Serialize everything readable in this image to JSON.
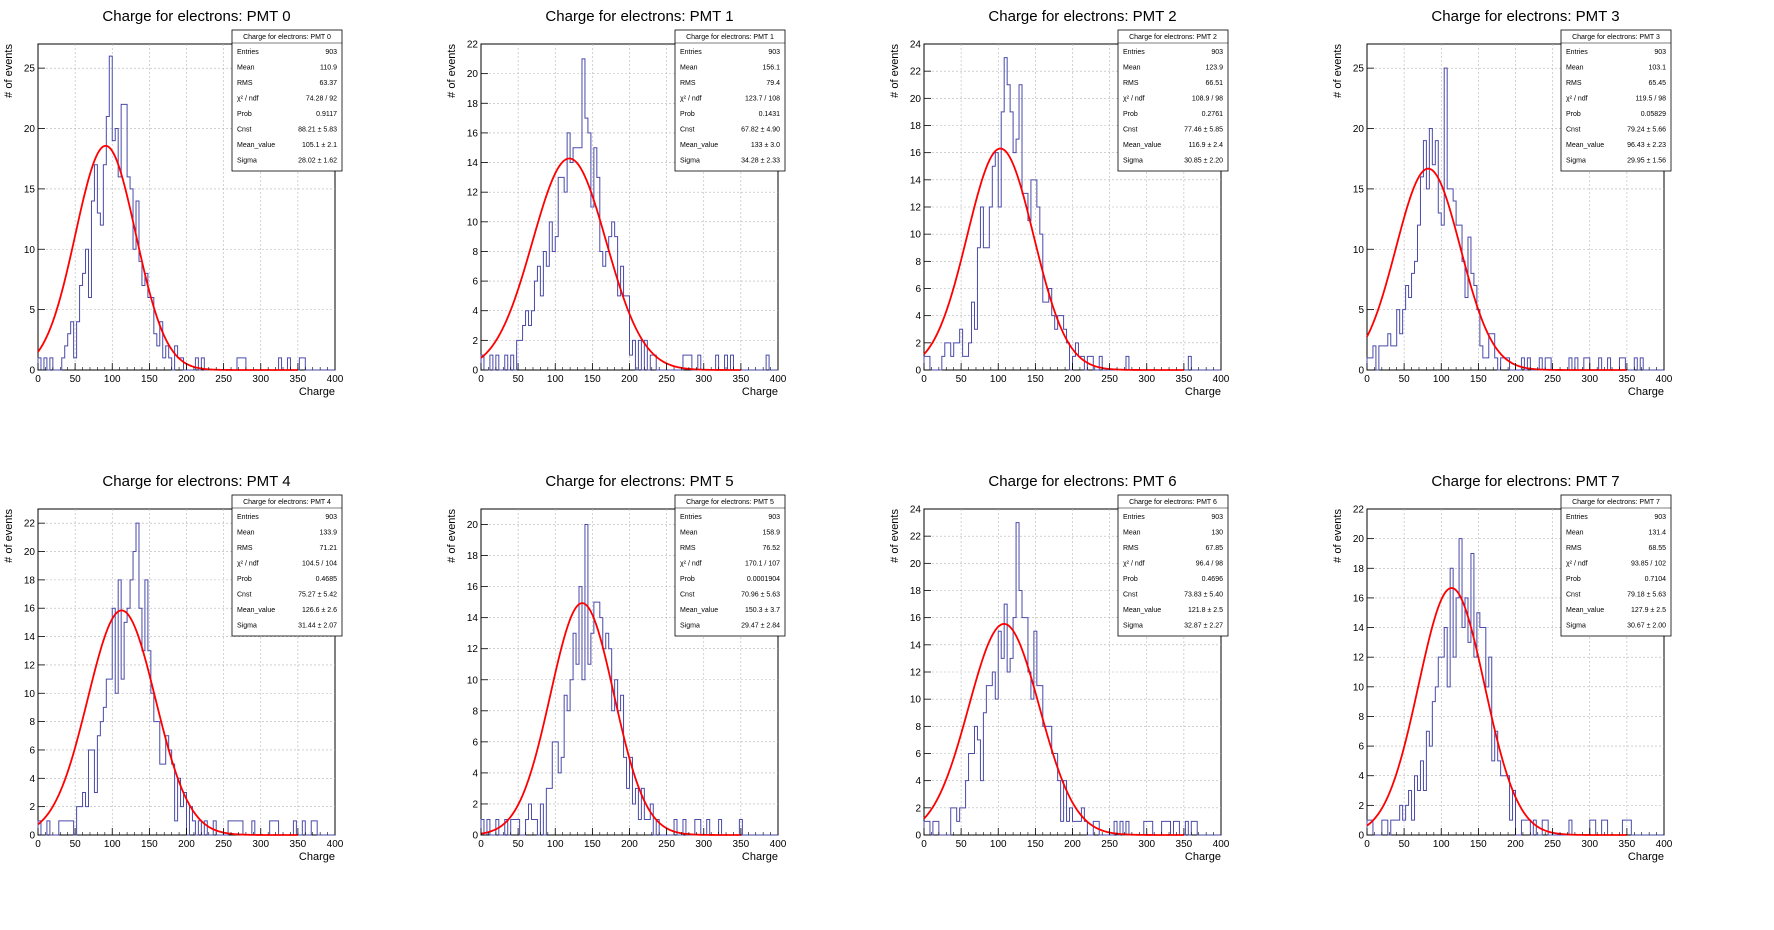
{
  "chart_data": [
    {
      "type": "histogram",
      "title": "Charge for electrons: PMT 0",
      "xlabel": "Charge",
      "ylabel": "# of events",
      "xlim": [
        0,
        400
      ],
      "ylim": [
        0,
        27
      ],
      "yticks": [
        0,
        5,
        10,
        15,
        20,
        25
      ],
      "xticks": [
        0,
        50,
        100,
        150,
        200,
        250,
        300,
        350,
        400
      ],
      "grid": true,
      "bins": 100,
      "peak_bin_value": 26,
      "fit": {
        "Cnst": 88.21,
        "Mean_value": 105.1,
        "Sigma": 28.02,
        "range": [
          0,
          350
        ]
      },
      "stats": {
        "title": "Charge for electrons: PMT 0",
        "rows": [
          {
            "k": "Entries",
            "v": "903"
          },
          {
            "k": "Mean",
            "v": "110.9"
          },
          {
            "k": "RMS",
            "v": "63.37"
          },
          {
            "k": "χ² / ndf",
            "v": "74.28 / 92"
          },
          {
            "k": "Prob",
            "v": "0.9117"
          },
          {
            "k": "Cnst",
            "v": "88.21 ± 5.83"
          },
          {
            "k": "Mean_value",
            "v": "105.1 ± 2.1"
          },
          {
            "k": "Sigma",
            "v": "28.02 ± 1.62"
          }
        ]
      },
      "series": [
        {
          "name": "histogram",
          "color": "#4a4aaa"
        },
        {
          "name": "fit",
          "color": "#ff0000"
        }
      ]
    },
    {
      "type": "histogram",
      "title": "Charge for electrons: PMT 1",
      "xlabel": "Charge",
      "ylabel": "# of events",
      "xlim": [
        0,
        400
      ],
      "ylim": [
        0,
        22
      ],
      "yticks": [
        0,
        2,
        4,
        6,
        8,
        10,
        12,
        14,
        16,
        18,
        20,
        22
      ],
      "xticks": [
        0,
        50,
        100,
        150,
        200,
        250,
        300,
        350,
        400
      ],
      "grid": true,
      "bins": 100,
      "peak_bin_value": 21,
      "fit": {
        "Cnst": 67.82,
        "Mean_value": 133,
        "Sigma": 34.28,
        "range": [
          0,
          350
        ]
      },
      "stats": {
        "title": "Charge for electrons: PMT 1",
        "rows": [
          {
            "k": "Entries",
            "v": "903"
          },
          {
            "k": "Mean",
            "v": "156.1"
          },
          {
            "k": "RMS",
            "v": "79.4"
          },
          {
            "k": "χ² / ndf",
            "v": "123.7 / 108"
          },
          {
            "k": "Prob",
            "v": "0.1431"
          },
          {
            "k": "Cnst",
            "v": "67.82 ± 4.90"
          },
          {
            "k": "Mean_value",
            "v": "133 ± 3.0"
          },
          {
            "k": "Sigma",
            "v": "34.28 ± 2.33"
          }
        ]
      },
      "series": [
        {
          "name": "histogram",
          "color": "#4a4aaa"
        },
        {
          "name": "fit",
          "color": "#ff0000"
        }
      ]
    },
    {
      "type": "histogram",
      "title": "Charge for electrons: PMT 2",
      "xlabel": "Charge",
      "ylabel": "# of events",
      "xlim": [
        0,
        400
      ],
      "ylim": [
        0,
        24
      ],
      "yticks": [
        0,
        2,
        4,
        6,
        8,
        10,
        12,
        14,
        16,
        18,
        20,
        22,
        24
      ],
      "xticks": [
        0,
        50,
        100,
        150,
        200,
        250,
        300,
        350,
        400
      ],
      "grid": true,
      "bins": 100,
      "peak_bin_value": 23,
      "fit": {
        "Cnst": 77.46,
        "Mean_value": 116.9,
        "Sigma": 30.85,
        "range": [
          0,
          350
        ]
      },
      "stats": {
        "title": "Charge for electrons: PMT 2",
        "rows": [
          {
            "k": "Entries",
            "v": "903"
          },
          {
            "k": "Mean",
            "v": "123.9"
          },
          {
            "k": "RMS",
            "v": "66.51"
          },
          {
            "k": "χ² / ndf",
            "v": "108.9 / 98"
          },
          {
            "k": "Prob",
            "v": "0.2761"
          },
          {
            "k": "Cnst",
            "v": "77.46 ± 5.85"
          },
          {
            "k": "Mean_value",
            "v": "116.9 ± 2.4"
          },
          {
            "k": "Sigma",
            "v": "30.85 ± 2.20"
          }
        ]
      },
      "series": [
        {
          "name": "histogram",
          "color": "#4a4aaa"
        },
        {
          "name": "fit",
          "color": "#ff0000"
        }
      ]
    },
    {
      "type": "histogram",
      "title": "Charge for electrons: PMT 3",
      "xlabel": "Charge",
      "ylabel": "# of events",
      "xlim": [
        0,
        400
      ],
      "ylim": [
        0,
        27
      ],
      "yticks": [
        0,
        5,
        10,
        15,
        20,
        25
      ],
      "xticks": [
        0,
        50,
        100,
        150,
        200,
        250,
        300,
        350,
        400
      ],
      "grid": true,
      "bins": 100,
      "peak_bin_value": 25,
      "fit": {
        "Cnst": 79.24,
        "Mean_value": 96.43,
        "Sigma": 29.95,
        "range": [
          0,
          350
        ]
      },
      "stats": {
        "title": "Charge for electrons: PMT 3",
        "rows": [
          {
            "k": "Entries",
            "v": "903"
          },
          {
            "k": "Mean",
            "v": "103.1"
          },
          {
            "k": "RMS",
            "v": "65.45"
          },
          {
            "k": "χ² / ndf",
            "v": "119.5 / 98"
          },
          {
            "k": "Prob",
            "v": "0.05829"
          },
          {
            "k": "Cnst",
            "v": "79.24 ± 5.66"
          },
          {
            "k": "Mean_value",
            "v": "96.43 ± 2.23"
          },
          {
            "k": "Sigma",
            "v": "29.95 ± 1.56"
          }
        ]
      },
      "series": [
        {
          "name": "histogram",
          "color": "#4a4aaa"
        },
        {
          "name": "fit",
          "color": "#ff0000"
        }
      ]
    },
    {
      "type": "histogram",
      "title": "Charge for electrons: PMT 4",
      "xlabel": "Charge",
      "ylabel": "# of events",
      "xlim": [
        0,
        400
      ],
      "ylim": [
        0,
        23
      ],
      "yticks": [
        0,
        2,
        4,
        6,
        8,
        10,
        12,
        14,
        16,
        18,
        20,
        22
      ],
      "xticks": [
        0,
        50,
        100,
        150,
        200,
        250,
        300,
        350,
        400
      ],
      "grid": true,
      "bins": 100,
      "peak_bin_value": 22,
      "fit": {
        "Cnst": 75.27,
        "Mean_value": 126.6,
        "Sigma": 31.44,
        "range": [
          0,
          350
        ]
      },
      "stats": {
        "title": "Charge for electrons: PMT 4",
        "rows": [
          {
            "k": "Entries",
            "v": "903"
          },
          {
            "k": "Mean",
            "v": "133.9"
          },
          {
            "k": "RMS",
            "v": "71.21"
          },
          {
            "k": "χ² / ndf",
            "v": "104.5 / 104"
          },
          {
            "k": "Prob",
            "v": "0.4685"
          },
          {
            "k": "Cnst",
            "v": "75.27 ± 5.42"
          },
          {
            "k": "Mean_value",
            "v": "126.6 ± 2.6"
          },
          {
            "k": "Sigma",
            "v": "31.44 ± 2.07"
          }
        ]
      },
      "series": [
        {
          "name": "histogram",
          "color": "#4a4aaa"
        },
        {
          "name": "fit",
          "color": "#ff0000"
        }
      ]
    },
    {
      "type": "histogram",
      "title": "Charge for electrons: PMT 5",
      "xlabel": "Charge",
      "ylabel": "# of events",
      "xlim": [
        0,
        400
      ],
      "ylim": [
        0,
        21
      ],
      "yticks": [
        0,
        2,
        4,
        6,
        8,
        10,
        12,
        14,
        16,
        18,
        20
      ],
      "xticks": [
        0,
        50,
        100,
        150,
        200,
        250,
        300,
        350,
        400
      ],
      "grid": true,
      "bins": 100,
      "peak_bin_value": 20,
      "fit": {
        "Cnst": 70.96,
        "Mean_value": 150.3,
        "Sigma": 29.47,
        "range": [
          0,
          350
        ]
      },
      "stats": {
        "title": "Charge for electrons: PMT 5",
        "rows": [
          {
            "k": "Entries",
            "v": "903"
          },
          {
            "k": "Mean",
            "v": "158.9"
          },
          {
            "k": "RMS",
            "v": "76.52"
          },
          {
            "k": "χ² / ndf",
            "v": "170.1 / 107"
          },
          {
            "k": "Prob",
            "v": "0.0001904"
          },
          {
            "k": "Cnst",
            "v": "70.96 ± 5.63"
          },
          {
            "k": "Mean_value",
            "v": "150.3 ± 3.7"
          },
          {
            "k": "Sigma",
            "v": "29.47 ± 2.84"
          }
        ]
      },
      "series": [
        {
          "name": "histogram",
          "color": "#4a4aaa"
        },
        {
          "name": "fit",
          "color": "#ff0000"
        }
      ]
    },
    {
      "type": "histogram",
      "title": "Charge for electrons: PMT 6",
      "xlabel": "Charge",
      "ylabel": "# of events",
      "xlim": [
        0,
        400
      ],
      "ylim": [
        0,
        24
      ],
      "yticks": [
        0,
        2,
        4,
        6,
        8,
        10,
        12,
        14,
        16,
        18,
        20,
        22,
        24
      ],
      "xticks": [
        0,
        50,
        100,
        150,
        200,
        250,
        300,
        350,
        400
      ],
      "grid": true,
      "bins": 100,
      "peak_bin_value": 23,
      "fit": {
        "Cnst": 73.83,
        "Mean_value": 121.8,
        "Sigma": 32.87,
        "range": [
          0,
          350
        ]
      },
      "stats": {
        "title": "Charge for electrons: PMT 6",
        "rows": [
          {
            "k": "Entries",
            "v": "903"
          },
          {
            "k": "Mean",
            "v": "130"
          },
          {
            "k": "RMS",
            "v": "67.85"
          },
          {
            "k": "χ² / ndf",
            "v": "96.4 / 98"
          },
          {
            "k": "Prob",
            "v": "0.4696"
          },
          {
            "k": "Cnst",
            "v": "73.83 ± 5.40"
          },
          {
            "k": "Mean_value",
            "v": "121.8 ± 2.5"
          },
          {
            "k": "Sigma",
            "v": "32.87 ± 2.27"
          }
        ]
      },
      "series": [
        {
          "name": "histogram",
          "color": "#4a4aaa"
        },
        {
          "name": "fit",
          "color": "#ff0000"
        }
      ]
    },
    {
      "type": "histogram",
      "title": "Charge for electrons: PMT 7",
      "xlabel": "Charge",
      "ylabel": "# of events",
      "xlim": [
        0,
        400
      ],
      "ylim": [
        0,
        22
      ],
      "yticks": [
        0,
        2,
        4,
        6,
        8,
        10,
        12,
        14,
        16,
        18,
        20,
        22
      ],
      "xticks": [
        0,
        50,
        100,
        150,
        200,
        250,
        300,
        350,
        400
      ],
      "grid": true,
      "bins": 100,
      "peak_bin_value": 20,
      "fit": {
        "Cnst": 79.18,
        "Mean_value": 127.9,
        "Sigma": 30.67,
        "range": [
          0,
          350
        ]
      },
      "stats": {
        "title": "Charge for electrons: PMT 7",
        "rows": [
          {
            "k": "Entries",
            "v": "903"
          },
          {
            "k": "Mean",
            "v": "131.4"
          },
          {
            "k": "RMS",
            "v": "68.55"
          },
          {
            "k": "χ² / ndf",
            "v": "93.85 / 102"
          },
          {
            "k": "Prob",
            "v": "0.7104"
          },
          {
            "k": "Cnst",
            "v": "79.18 ± 5.63"
          },
          {
            "k": "Mean_value",
            "v": "127.9 ± 2.5"
          },
          {
            "k": "Sigma",
            "v": "30.67 ± 2.00"
          }
        ]
      },
      "series": [
        {
          "name": "histogram",
          "color": "#4a4aaa"
        },
        {
          "name": "fit",
          "color": "#ff0000"
        }
      ]
    }
  ]
}
